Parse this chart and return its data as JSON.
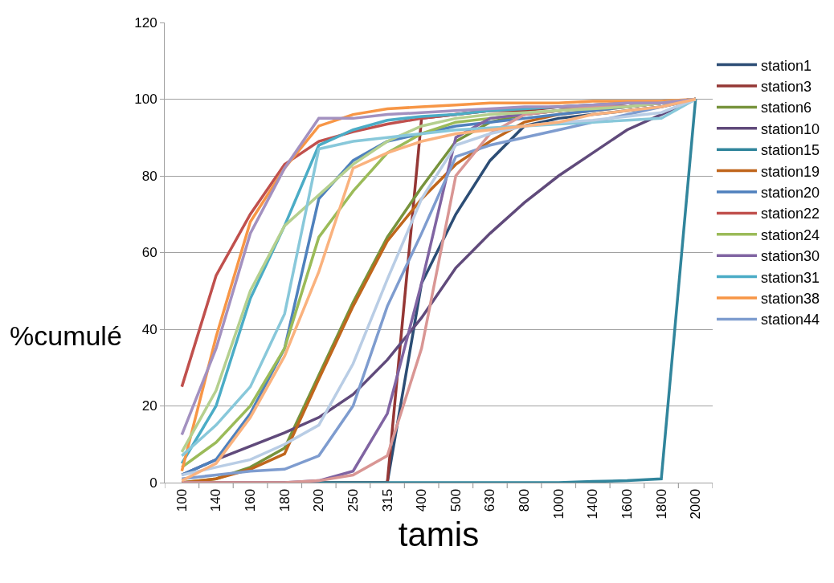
{
  "chart_data": {
    "type": "line",
    "xlabel": "tamis",
    "ylabel": "%cumulé",
    "categories": [
      "100",
      "140",
      "160",
      "180",
      "200",
      "250",
      "315",
      "400",
      "500",
      "630",
      "800",
      "1000",
      "1400",
      "1600",
      "1800",
      "2000"
    ],
    "ylim": [
      0,
      120
    ],
    "yticks": [
      0,
      20,
      40,
      60,
      80,
      100,
      120
    ],
    "grid": "y",
    "legend": "right",
    "marker": "none",
    "line_style": "solid",
    "series": [
      {
        "name": "station1",
        "color": "#2c4d75",
        "values": [
          0,
          0,
          0,
          0,
          0,
          0,
          0,
          52,
          70,
          84,
          93,
          95,
          96,
          97,
          98,
          100
        ]
      },
      {
        "name": "station3",
        "color": "#953735",
        "values": [
          0,
          0,
          0,
          0,
          0,
          0,
          0,
          95,
          96,
          97,
          97,
          98,
          98,
          99,
          99,
          100
        ]
      },
      {
        "name": "station6",
        "color": "#77933c",
        "values": [
          0,
          1,
          4,
          9,
          28,
          47,
          64,
          77,
          89,
          94,
          96,
          97,
          98,
          98,
          99,
          100
        ]
      },
      {
        "name": "station10",
        "color": "#604a7b",
        "values": [
          2,
          6,
          9.5,
          13,
          17,
          23,
          32,
          43,
          56,
          65,
          73,
          80,
          86,
          92,
          96,
          100
        ]
      },
      {
        "name": "station15",
        "color": "#31859c",
        "values": [
          null,
          null,
          null,
          0,
          0,
          0,
          0,
          0,
          0,
          0,
          0,
          0,
          0.3,
          0.5,
          1,
          100
        ]
      },
      {
        "name": "station19",
        "color": "#c0661c",
        "values": [
          0,
          1,
          3.5,
          7.5,
          27,
          46,
          63,
          74,
          83,
          89,
          94,
          96,
          97,
          98,
          99,
          100
        ]
      },
      {
        "name": "station20",
        "color": "#4f81bd",
        "values": [
          2,
          6,
          18,
          35,
          74,
          84,
          89,
          91,
          93,
          94,
          95,
          96,
          97,
          98,
          99,
          100
        ]
      },
      {
        "name": "station22",
        "color": "#c0504d",
        "values": [
          25,
          54,
          70,
          83,
          89,
          91.5,
          93.5,
          95,
          96,
          97,
          97.5,
          98,
          98.5,
          99,
          99,
          100
        ]
      },
      {
        "name": "station24",
        "color": "#9bbb59",
        "values": [
          4,
          10.5,
          20,
          35,
          64,
          76,
          86,
          91,
          94,
          95,
          96,
          97,
          98,
          98,
          99,
          100
        ]
      },
      {
        "name": "station30",
        "color": "#8064a2",
        "values": [
          0,
          0,
          0,
          0,
          0.5,
          3,
          18,
          52,
          90,
          95,
          96,
          97,
          98,
          98,
          99,
          100
        ]
      },
      {
        "name": "station31",
        "color": "#4bacc6",
        "values": [
          5,
          20,
          48,
          67,
          88,
          92,
          94.5,
          95.5,
          96,
          97,
          97.5,
          98,
          98.5,
          99,
          99,
          100
        ]
      },
      {
        "name": "station38",
        "color": "#f79646",
        "values": [
          3,
          38,
          68,
          82,
          93,
          96,
          97.5,
          98,
          98.5,
          99,
          99,
          99,
          99.5,
          99.5,
          99.5,
          100
        ]
      },
      {
        "name": "station44",
        "color": "#7e9ccf",
        "values": [
          1,
          2,
          3,
          3.5,
          7,
          20,
          46,
          65,
          85,
          88,
          90,
          92,
          94,
          96,
          98,
          100
        ]
      },
      {
        "color": "#d99694",
        "values": [
          0,
          0,
          0,
          0,
          0.5,
          2,
          7,
          35,
          80,
          91,
          96,
          97,
          98,
          98,
          99,
          100
        ]
      },
      {
        "color": "#b5d08f",
        "values": [
          8,
          24,
          50,
          67,
          75,
          83,
          89,
          93,
          95,
          96,
          96.5,
          97,
          97.5,
          98,
          99,
          100
        ]
      },
      {
        "color": "#a391c0",
        "values": [
          12.5,
          35,
          65,
          82,
          95,
          95,
          96,
          96.5,
          97,
          97.5,
          98,
          98,
          98.5,
          99,
          99,
          100
        ]
      },
      {
        "color": "#88c8da",
        "values": [
          7,
          15,
          25,
          44,
          87,
          89,
          90,
          91,
          92,
          92.5,
          93,
          93.5,
          94,
          94.5,
          95,
          100
        ]
      },
      {
        "color": "#b9cde5",
        "values": [
          2,
          4,
          6,
          10,
          15,
          31,
          53,
          74,
          88,
          91,
          93,
          94,
          94.5,
          95.5,
          96.5,
          100
        ]
      },
      {
        "color": "#fab27e",
        "values": [
          0.5,
          5,
          17,
          33,
          55,
          82,
          86,
          89,
          91,
          92,
          93,
          94,
          96,
          97,
          98,
          100
        ]
      }
    ]
  }
}
